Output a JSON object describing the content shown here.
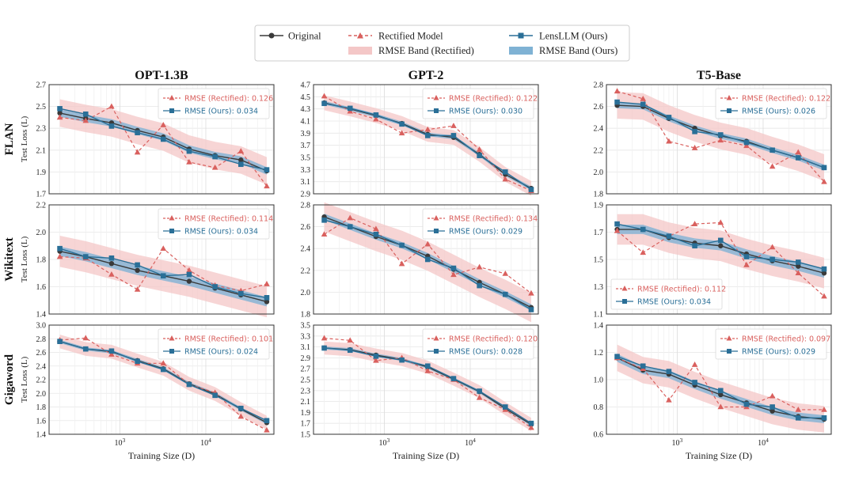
{
  "legend": {
    "original": "Original",
    "rectified": "Rectified Model",
    "lensllm": "LensLLM (Ours)",
    "band_rectified": "RMSE Band (Rectified)",
    "band_ours": "RMSE Band (Ours)"
  },
  "columns": [
    "OPT-1.3B",
    "GPT-2",
    "T5-Base"
  ],
  "rows": [
    "FLAN",
    "Wikitext",
    "Gigaword"
  ],
  "ylabel": "Test Loss (L)",
  "xlabel": "Training Size (D)",
  "colors": {
    "original": "#3a3a3a",
    "rectified": "#d9605e",
    "ours": "#2a6f97",
    "band_rectified": "#f4c7c7",
    "band_ours": "#7fb2d4"
  },
  "chart_data": [
    {
      "type": "line",
      "row": "FLAN",
      "col": "OPT-1.3B",
      "xscale": "log",
      "ylim": [
        1.7,
        2.7
      ],
      "yticks": [
        "1.7",
        "1.9",
        "2.1",
        "2.3",
        "2.5",
        "2.7"
      ],
      "x": [
        200,
        400,
        800,
        1600,
        3200,
        6400,
        12800,
        25600,
        51200
      ],
      "series": [
        {
          "name": "Original",
          "values": [
            2.44,
            2.39,
            2.35,
            2.28,
            2.22,
            2.11,
            2.05,
            2.01,
            1.91
          ]
        },
        {
          "name": "Rectified Model",
          "values": [
            2.4,
            2.37,
            2.5,
            2.08,
            2.33,
            1.99,
            1.94,
            2.09,
            1.77
          ]
        },
        {
          "name": "LensLLM (Ours)",
          "values": [
            2.48,
            2.43,
            2.32,
            2.26,
            2.2,
            2.09,
            2.04,
            1.97,
            1.92
          ]
        }
      ],
      "band_rectified": 0.126,
      "band_ours": 0.034,
      "annotations": [
        "RMSE (Rectified): 0.126",
        "RMSE (Ours): 0.034"
      ],
      "annot_pos": "top-right"
    },
    {
      "type": "line",
      "row": "FLAN",
      "col": "GPT-2",
      "xscale": "log",
      "ylim": [
        2.9,
        4.7
      ],
      "yticks": [
        "2.9",
        "3.1",
        "3.3",
        "3.5",
        "3.7",
        "3.9",
        "4.1",
        "4.3",
        "4.5",
        "4.7"
      ],
      "x": [
        200,
        400,
        800,
        1600,
        3200,
        6400,
        12800,
        25600,
        51200
      ],
      "series": [
        {
          "name": "Original",
          "values": [
            4.4,
            4.3,
            4.19,
            4.06,
            3.88,
            3.83,
            3.55,
            3.22,
            2.99
          ]
        },
        {
          "name": "Rectified Model",
          "values": [
            4.51,
            4.26,
            4.13,
            3.9,
            3.96,
            4.02,
            3.63,
            3.14,
            2.95
          ]
        },
        {
          "name": "LensLLM (Ours)",
          "values": [
            4.39,
            4.31,
            4.2,
            4.05,
            3.86,
            3.86,
            3.53,
            3.26,
            2.97
          ]
        }
      ],
      "band_rectified": 0.122,
      "band_ours": 0.03,
      "annotations": [
        "RMSE (Rectified): 0.122",
        "RMSE (Ours): 0.030"
      ],
      "annot_pos": "top-right"
    },
    {
      "type": "line",
      "row": "FLAN",
      "col": "T5-Base",
      "xscale": "log",
      "ylim": [
        1.8,
        2.8
      ],
      "yticks": [
        "1.8",
        "2.0",
        "2.2",
        "2.4",
        "2.6",
        "2.8"
      ],
      "x": [
        200,
        400,
        800,
        1600,
        3200,
        6400,
        12800,
        25600,
        51200
      ],
      "series": [
        {
          "name": "Original",
          "values": [
            2.61,
            2.6,
            2.49,
            2.4,
            2.33,
            2.28,
            2.2,
            2.13,
            2.04
          ]
        },
        {
          "name": "Rectified Model",
          "values": [
            2.74,
            2.67,
            2.28,
            2.22,
            2.29,
            2.24,
            2.05,
            2.18,
            1.91
          ]
        },
        {
          "name": "LensLLM (Ours)",
          "values": [
            2.64,
            2.62,
            2.5,
            2.37,
            2.34,
            2.27,
            2.2,
            2.13,
            2.04
          ]
        }
      ],
      "band_rectified": 0.122,
      "band_ours": 0.026,
      "annotations": [
        "RMSE (Rectified): 0.122",
        "RMSE (Ours): 0.026"
      ],
      "annot_pos": "top-right"
    },
    {
      "type": "line",
      "row": "Wikitext",
      "col": "OPT-1.3B",
      "xscale": "log",
      "ylim": [
        1.4,
        2.2
      ],
      "yticks": [
        "1.4",
        "1.6",
        "1.8",
        "2.0",
        "2.2"
      ],
      "x": [
        200,
        400,
        800,
        1600,
        3200,
        6400,
        12800,
        25600,
        51200
      ],
      "series": [
        {
          "name": "Original",
          "values": [
            1.86,
            1.82,
            1.77,
            1.72,
            1.68,
            1.64,
            1.59,
            1.54,
            1.49
          ]
        },
        {
          "name": "Rectified Model",
          "values": [
            1.82,
            1.81,
            1.69,
            1.58,
            1.88,
            1.72,
            1.61,
            1.57,
            1.62
          ]
        },
        {
          "name": "LensLLM (Ours)",
          "values": [
            1.88,
            1.82,
            1.81,
            1.76,
            1.68,
            1.69,
            1.6,
            1.55,
            1.52
          ]
        }
      ],
      "band_rectified": 0.114,
      "band_ours": 0.034,
      "annotations": [
        "RMSE (Rectified): 0.114",
        "RMSE (Ours): 0.034"
      ],
      "annot_pos": "top-right"
    },
    {
      "type": "line",
      "row": "Wikitext",
      "col": "GPT-2",
      "xscale": "log",
      "ylim": [
        1.8,
        2.8
      ],
      "yticks": [
        "1.8",
        "2.0",
        "2.2",
        "2.4",
        "2.6",
        "2.8"
      ],
      "x": [
        200,
        400,
        800,
        1600,
        3200,
        6400,
        12800,
        25600,
        51200
      ],
      "series": [
        {
          "name": "Original",
          "values": [
            2.69,
            2.6,
            2.51,
            2.43,
            2.33,
            2.21,
            2.09,
            1.98,
            1.86
          ]
        },
        {
          "name": "Rectified Model",
          "values": [
            2.53,
            2.68,
            2.58,
            2.26,
            2.44,
            2.16,
            2.23,
            2.17,
            1.99
          ]
        },
        {
          "name": "LensLLM (Ours)",
          "values": [
            2.66,
            2.6,
            2.53,
            2.43,
            2.3,
            2.22,
            2.06,
            1.98,
            1.84
          ]
        }
      ],
      "band_rectified": 0.134,
      "band_ours": 0.029,
      "annotations": [
        "RMSE (Rectified): 0.134",
        "RMSE (Ours): 0.029"
      ],
      "annot_pos": "top-right"
    },
    {
      "type": "line",
      "row": "Wikitext",
      "col": "T5-Base",
      "xscale": "log",
      "ylim": [
        1.1,
        1.9
      ],
      "yticks": [
        "1.1",
        "1.3",
        "1.5",
        "1.7",
        "1.9"
      ],
      "x": [
        200,
        400,
        800,
        1600,
        3200,
        6400,
        12800,
        25600,
        51200
      ],
      "series": [
        {
          "name": "Original",
          "values": [
            1.72,
            1.72,
            1.66,
            1.62,
            1.6,
            1.54,
            1.49,
            1.45,
            1.4
          ]
        },
        {
          "name": "Rectified Model",
          "values": [
            1.71,
            1.55,
            1.67,
            1.76,
            1.77,
            1.46,
            1.59,
            1.4,
            1.23
          ]
        },
        {
          "name": "LensLLM (Ours)",
          "values": [
            1.76,
            1.72,
            1.67,
            1.6,
            1.64,
            1.52,
            1.5,
            1.48,
            1.43
          ]
        }
      ],
      "band_rectified": 0.112,
      "band_ours": 0.034,
      "annotations": [
        "RMSE (Rectified): 0.112",
        "RMSE (Ours): 0.034"
      ],
      "annot_pos": "bottom-left"
    },
    {
      "type": "line",
      "row": "Gigaword",
      "col": "OPT-1.3B",
      "xscale": "log",
      "ylim": [
        1.4,
        3.0
      ],
      "yticks": [
        "1.4",
        "1.6",
        "1.8",
        "2.0",
        "2.2",
        "2.4",
        "2.6",
        "2.8",
        "3.0"
      ],
      "x": [
        200,
        400,
        800,
        1600,
        3200,
        6400,
        12800,
        25600,
        51200
      ],
      "series": [
        {
          "name": "Original",
          "values": [
            2.76,
            2.65,
            2.61,
            2.48,
            2.36,
            2.14,
            1.99,
            1.77,
            1.57
          ]
        },
        {
          "name": "Rectified Model",
          "values": [
            2.78,
            2.81,
            2.57,
            2.44,
            2.44,
            2.13,
            2.01,
            1.66,
            1.46
          ]
        },
        {
          "name": "LensLLM (Ours)",
          "values": [
            2.76,
            2.65,
            2.62,
            2.47,
            2.35,
            2.13,
            1.97,
            1.78,
            1.6
          ]
        }
      ],
      "band_rectified": 0.101,
      "band_ours": 0.024,
      "annotations": [
        "RMSE (Rectified): 0.101",
        "RMSE (Ours): 0.024"
      ],
      "annot_pos": "top-right"
    },
    {
      "type": "line",
      "row": "Gigaword",
      "col": "GPT-2",
      "xscale": "log",
      "ylim": [
        1.5,
        3.5
      ],
      "yticks": [
        "1.5",
        "1.7",
        "1.9",
        "2.1",
        "2.3",
        "2.5",
        "2.7",
        "2.9",
        "3.1",
        "3.3",
        "3.5"
      ],
      "x": [
        200,
        400,
        800,
        1600,
        3200,
        6400,
        12800,
        25600,
        51200
      ],
      "series": [
        {
          "name": "Original",
          "values": [
            3.08,
            3.05,
            2.95,
            2.87,
            2.73,
            2.51,
            2.28,
            1.97,
            1.68
          ]
        },
        {
          "name": "Rectified Model",
          "values": [
            3.26,
            3.22,
            2.85,
            2.9,
            2.66,
            2.5,
            2.17,
            1.95,
            1.62
          ]
        },
        {
          "name": "LensLLM (Ours)",
          "values": [
            3.08,
            3.04,
            2.93,
            2.86,
            2.75,
            2.52,
            2.29,
            2.0,
            1.7
          ]
        }
      ],
      "band_rectified": 0.12,
      "band_ours": 0.028,
      "annotations": [
        "RMSE (Rectified): 0.120",
        "RMSE (Ours): 0.028"
      ],
      "annot_pos": "top-right"
    },
    {
      "type": "line",
      "row": "Gigaword",
      "col": "T5-Base",
      "xscale": "log",
      "ylim": [
        0.6,
        1.4
      ],
      "yticks": [
        "0.6",
        "0.8",
        "1.0",
        "1.2",
        "1.4"
      ],
      "x": [
        200,
        400,
        800,
        1600,
        3200,
        6400,
        12800,
        25600,
        51200
      ],
      "series": [
        {
          "name": "Original",
          "values": [
            1.16,
            1.07,
            1.04,
            0.96,
            0.89,
            0.83,
            0.77,
            0.73,
            0.71
          ]
        },
        {
          "name": "Rectified Model",
          "values": [
            1.16,
            1.08,
            0.85,
            1.11,
            0.8,
            0.8,
            0.88,
            0.78,
            0.78
          ]
        },
        {
          "name": "LensLLM (Ours)",
          "values": [
            1.17,
            1.1,
            1.06,
            0.98,
            0.92,
            0.82,
            0.8,
            0.72,
            0.72
          ]
        }
      ],
      "band_rectified": 0.097,
      "band_ours": 0.029,
      "annotations": [
        "RMSE (Rectified): 0.097",
        "RMSE (Ours): 0.029"
      ],
      "annot_pos": "top-right"
    }
  ]
}
